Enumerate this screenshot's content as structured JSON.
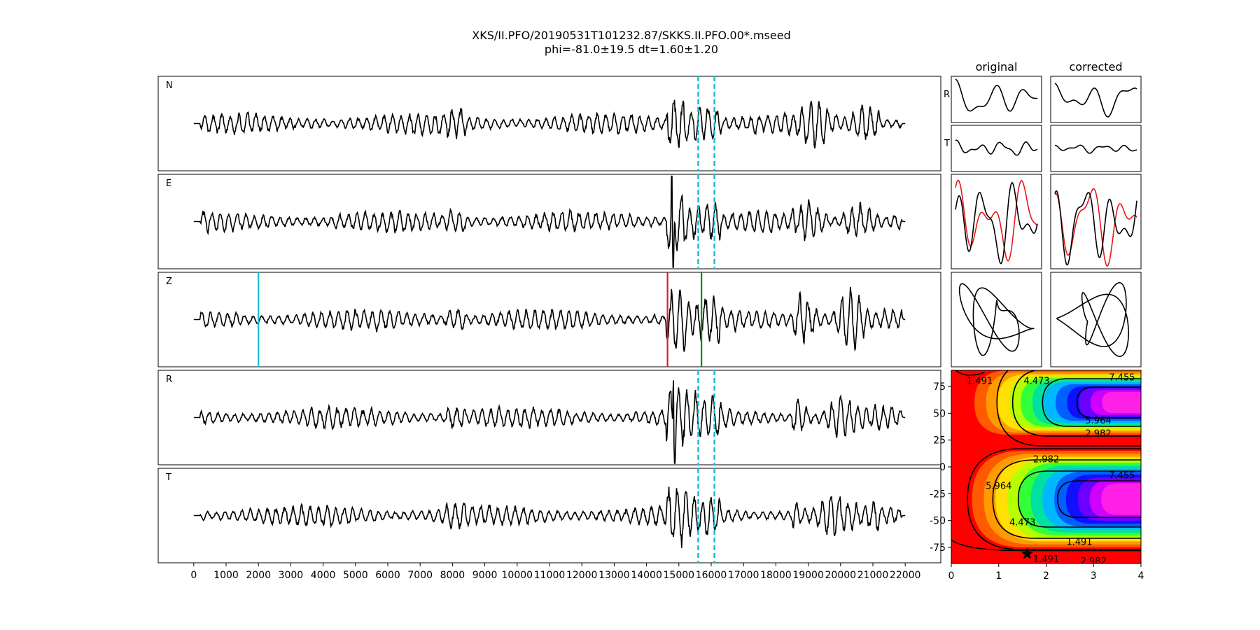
{
  "figure": {
    "title_line1": "XKS/II.PFO/20190531T101232.87/SKKS.II.PFO.00*.mseed",
    "title_line2": "phi=-81.0±19.5 dt=1.60±1.20"
  },
  "chart_data": [
    {
      "type": "line",
      "name": "traces",
      "panels": [
        "N",
        "E",
        "Z",
        "R",
        "T"
      ],
      "x_ticks": [
        0,
        1000,
        2000,
        3000,
        4000,
        5000,
        6000,
        7000,
        8000,
        9000,
        10000,
        11000,
        12000,
        13000,
        14000,
        15000,
        16000,
        17000,
        18000,
        19000,
        20000,
        21000,
        22000
      ],
      "xlim": [
        -1100,
        23100
      ],
      "trace_range": [
        0,
        22000
      ],
      "window_lines": {
        "color": "#17becf",
        "x": [
          15600,
          16100
        ],
        "panels": [
          "N",
          "E",
          "R",
          "T"
        ]
      },
      "phase_picks": [
        {
          "panel": "Z",
          "x": 2000,
          "color": "#17becf"
        },
        {
          "panel": "Z",
          "x": 14650,
          "color": "#e8161b"
        },
        {
          "panel": "Z",
          "x": 15700,
          "color": "#118811"
        }
      ]
    },
    {
      "type": "line",
      "name": "particle-motion",
      "column_titles": [
        "original",
        "corrected"
      ],
      "row_labels": [
        "R",
        "T"
      ]
    },
    {
      "type": "heatmap",
      "name": "energy-grid",
      "x_ticks": [
        0,
        1,
        2,
        3,
        4
      ],
      "y_ticks": [
        75,
        50,
        25,
        0,
        -25,
        -50,
        -75
      ],
      "xlim": [
        0,
        4
      ],
      "ylim": [
        -90,
        90
      ],
      "contour_labels": [
        "1.491",
        "4.473",
        "7.455",
        "5.964",
        "2.982",
        "2.982",
        "7.455",
        "5.964",
        "4.473",
        "1.491",
        "1.491",
        "2.982"
      ],
      "best_point": {
        "dt": 1.6,
        "phi": -81.0
      }
    }
  ]
}
